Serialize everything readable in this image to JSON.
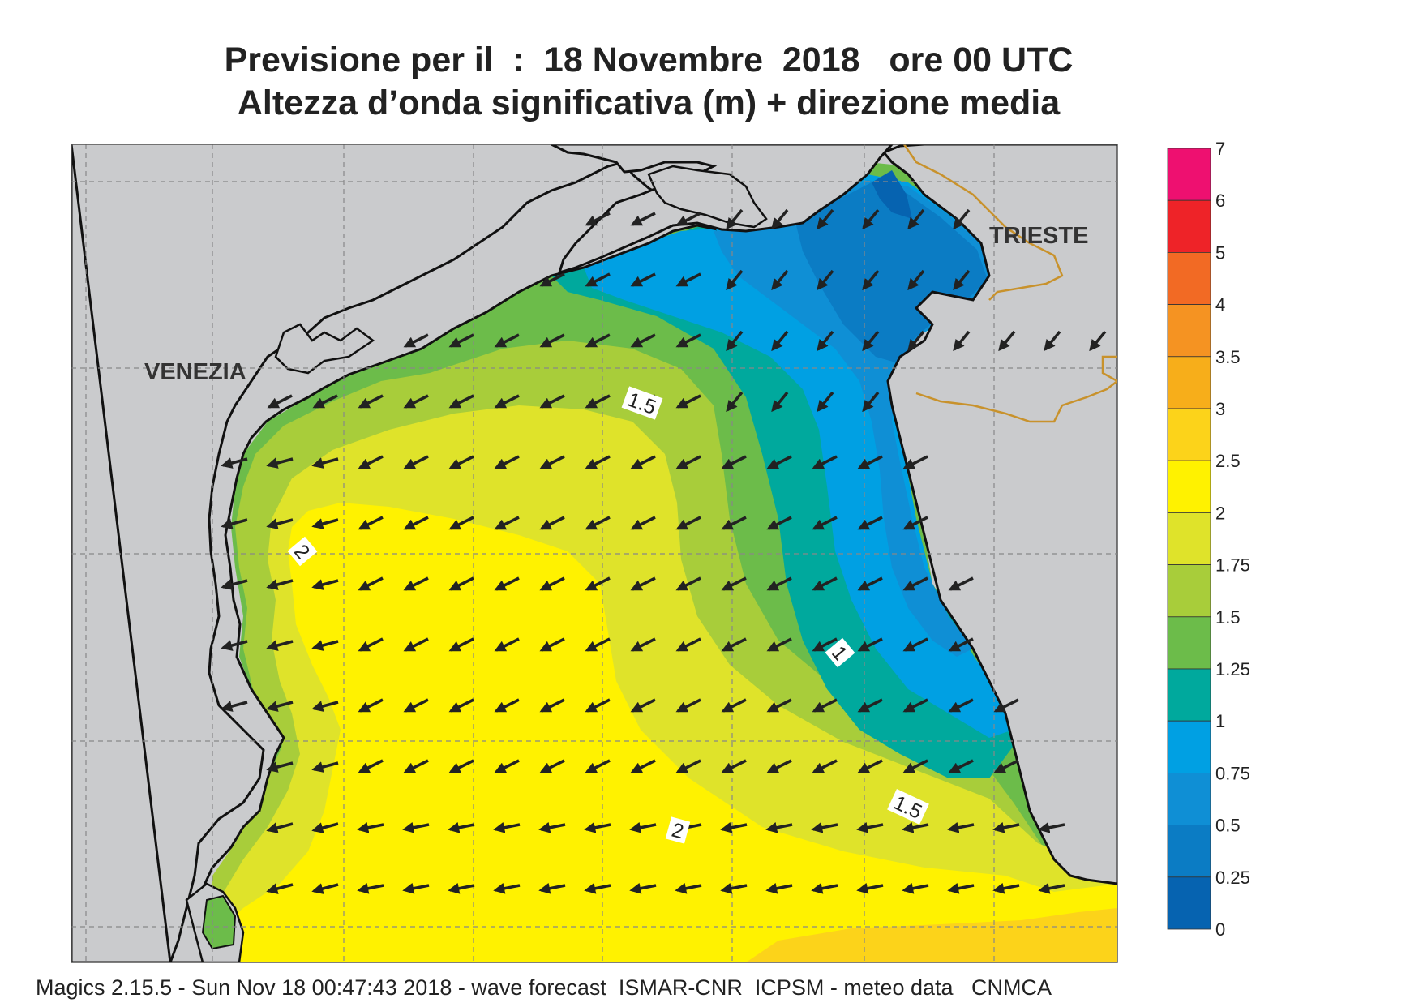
{
  "title": {
    "line1": "Previsione per il  :  18 Novembre  2018   ore 00 UTC",
    "line2": "Altezza d’onda significativa (m) + direzione media"
  },
  "places": {
    "venezia": "VENEZIA",
    "trieste": "TRIESTE"
  },
  "contour_labels": [
    "1.5",
    "2",
    "1",
    "1.5",
    "2"
  ],
  "legend": {
    "levels": [
      "7",
      "6",
      "5",
      "4",
      "3.5",
      "3",
      "2.5",
      "2",
      "1.75",
      "1.5",
      "1.25",
      "1",
      "0.75",
      "0.5",
      "0.25",
      "0"
    ],
    "colors": [
      "#ee1070",
      "#ee2328",
      "#f26a24",
      "#f59322",
      "#f7ae1a",
      "#fcd31a",
      "#fff200",
      "#dfe32a",
      "#a8cd3a",
      "#6cbc4a",
      "#00a99d",
      "#00a0e3",
      "#0f8fd5",
      "#0b7cc4",
      "#0663b0"
    ]
  },
  "map": {
    "sea_colors": {
      "band_0_25": "#0663b0",
      "band_0_5": "#0b7cc4",
      "band_0_75": "#0f8fd5",
      "band_1": "#00a0e3",
      "band_1_25": "#00a99d",
      "band_1_5": "#6cbc4a",
      "band_1_75": "#a8cd3a",
      "band_2": "#dfe32a",
      "band_2_5": "#fff200",
      "band_3": "#fcd31a"
    },
    "land_color": "#cacbcd",
    "border_color": "#c8922c"
  },
  "footer": "Magics 2.15.5 - Sun Nov 18 00:47:43 2018 - wave forecast  ISMAR-CNR  ICPSM - meteo data   CNMCA"
}
